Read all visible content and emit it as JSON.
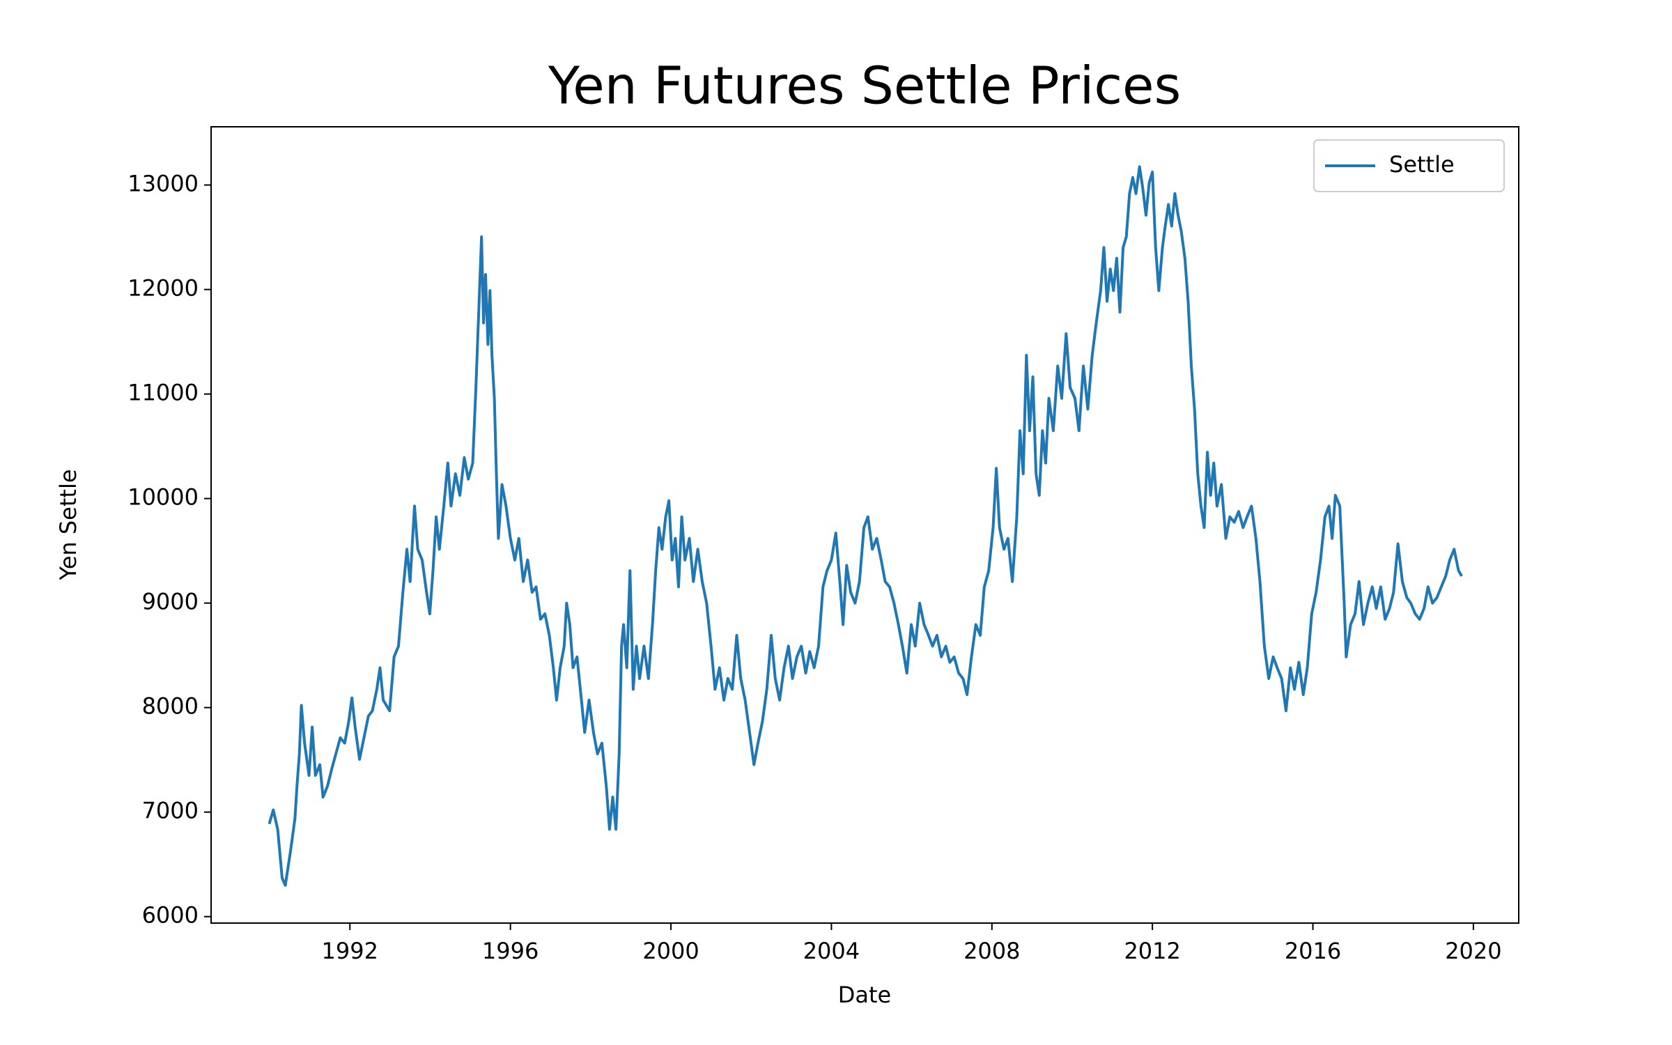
{
  "chart_data": {
    "type": "line",
    "title": "Yen Futures Settle Prices",
    "x_label": "Date",
    "y_label": "Yen Settle",
    "x": [
      1989.99,
      1990.09,
      1990.2,
      1990.31,
      1990.39,
      1990.52,
      1990.63,
      1990.68,
      1990.74,
      1990.79,
      1990.87,
      1990.98,
      1991.06,
      1991.14,
      1991.25,
      1991.33,
      1991.44,
      1991.54,
      1991.65,
      1991.76,
      1991.87,
      1991.97,
      1992.05,
      1992.13,
      1992.24,
      1992.35,
      1992.46,
      1992.56,
      1992.67,
      1992.75,
      1992.83,
      1992.99,
      1993.1,
      1993.21,
      1993.32,
      1993.42,
      1993.5,
      1993.61,
      1993.69,
      1993.8,
      1993.91,
      1993.99,
      1994.07,
      1994.15,
      1994.23,
      1994.34,
      1994.44,
      1994.52,
      1994.63,
      1994.74,
      1994.85,
      1994.95,
      1995.06,
      1995.14,
      1995.22,
      1995.28,
      1995.33,
      1995.38,
      1995.44,
      1995.49,
      1995.54,
      1995.6,
      1995.65,
      1995.7,
      1995.79,
      1995.89,
      1996.0,
      1996.11,
      1996.21,
      1996.32,
      1996.43,
      1996.54,
      1996.64,
      1996.75,
      1996.86,
      1996.97,
      1997.07,
      1997.15,
      1997.24,
      1997.34,
      1997.4,
      1997.48,
      1997.56,
      1997.66,
      1997.77,
      1997.85,
      1997.96,
      1998.07,
      1998.17,
      1998.28,
      1998.39,
      1998.47,
      1998.55,
      1998.63,
      1998.71,
      1998.77,
      1998.82,
      1998.9,
      1998.98,
      1999.06,
      1999.14,
      1999.22,
      1999.33,
      1999.44,
      1999.54,
      1999.62,
      1999.7,
      1999.78,
      1999.87,
      1999.95,
      2000.03,
      2000.11,
      2000.19,
      2000.27,
      2000.35,
      2000.46,
      2000.56,
      2000.67,
      2000.78,
      2000.89,
      2001.0,
      2001.1,
      2001.21,
      2001.32,
      2001.42,
      2001.53,
      2001.64,
      2001.74,
      2001.85,
      2001.96,
      2002.07,
      2002.17,
      2002.28,
      2002.39,
      2002.5,
      2002.6,
      2002.71,
      2002.82,
      2002.93,
      2003.03,
      2003.14,
      2003.25,
      2003.36,
      2003.46,
      2003.57,
      2003.68,
      2003.79,
      2003.89,
      2004.0,
      2004.11,
      2004.21,
      2004.29,
      2004.38,
      2004.48,
      2004.59,
      2004.7,
      2004.81,
      2004.91,
      2005.02,
      2005.13,
      2005.24,
      2005.34,
      2005.45,
      2005.56,
      2005.67,
      2005.77,
      2005.88,
      2005.99,
      2006.09,
      2006.2,
      2006.31,
      2006.42,
      2006.52,
      2006.63,
      2006.74,
      2006.85,
      2006.95,
      2007.06,
      2007.17,
      2007.28,
      2007.38,
      2007.49,
      2007.6,
      2007.71,
      2007.81,
      2007.92,
      2008.03,
      2008.11,
      2008.19,
      2008.3,
      2008.4,
      2008.51,
      2008.62,
      2008.7,
      2008.78,
      2008.86,
      2008.94,
      2009.02,
      2009.1,
      2009.18,
      2009.26,
      2009.34,
      2009.42,
      2009.53,
      2009.64,
      2009.74,
      2009.85,
      2009.95,
      2010.07,
      2010.17,
      2010.28,
      2010.39,
      2010.5,
      2010.6,
      2010.71,
      2010.79,
      2010.87,
      2010.95,
      2011.03,
      2011.11,
      2011.19,
      2011.27,
      2011.35,
      2011.43,
      2011.51,
      2011.59,
      2011.68,
      2011.76,
      2011.84,
      2011.92,
      2012.0,
      2012.08,
      2012.16,
      2012.25,
      2012.32,
      2012.4,
      2012.48,
      2012.56,
      2012.64,
      2012.72,
      2012.81,
      2012.89,
      2012.97,
      2013.05,
      2013.13,
      2013.21,
      2013.29,
      2013.37,
      2013.45,
      2013.53,
      2013.61,
      2013.72,
      2013.83,
      2013.93,
      2014.04,
      2014.15,
      2014.26,
      2014.36,
      2014.47,
      2014.58,
      2014.68,
      2014.79,
      2014.9,
      2015.01,
      2015.11,
      2015.22,
      2015.33,
      2015.44,
      2015.54,
      2015.65,
      2015.76,
      2015.86,
      2015.97,
      2016.08,
      2016.19,
      2016.3,
      2016.4,
      2016.48,
      2016.56,
      2016.67,
      2016.78,
      2016.83,
      2016.94,
      2017.05,
      2017.15,
      2017.26,
      2017.37,
      2017.48,
      2017.58,
      2017.69,
      2017.8,
      2017.91,
      2018.01,
      2018.12,
      2018.23,
      2018.34,
      2018.44,
      2018.55,
      2018.66,
      2018.77,
      2018.87,
      2018.98,
      2019.09,
      2019.2,
      2019.31,
      2019.41,
      2019.52,
      2019.63,
      2019.71
    ],
    "series": [
      {
        "name": "Settle",
        "color": "#1f77b4",
        "values": [
          6887,
          7021,
          6835,
          6371,
          6299,
          6629,
          6938,
          7247,
          7557,
          8021,
          7660,
          7351,
          7814,
          7351,
          7454,
          7144,
          7247,
          7402,
          7557,
          7711,
          7660,
          7866,
          8093,
          7814,
          7505,
          7711,
          7918,
          7969,
          8175,
          8381,
          8072,
          7969,
          8485,
          8588,
          9103,
          9515,
          9206,
          9928,
          9515,
          9412,
          9103,
          8897,
          9309,
          9825,
          9515,
          9928,
          10340,
          9928,
          10237,
          10031,
          10392,
          10186,
          10340,
          11062,
          11887,
          12505,
          11680,
          12144,
          11474,
          11990,
          11371,
          10959,
          10237,
          9619,
          10134,
          9928,
          9619,
          9412,
          9619,
          9206,
          9412,
          9103,
          9155,
          8845,
          8897,
          8691,
          8381,
          8072,
          8381,
          8588,
          8999,
          8794,
          8381,
          8485,
          8072,
          7763,
          8072,
          7763,
          7557,
          7660,
          7247,
          6835,
          7144,
          6835,
          7557,
          8588,
          8794,
          8381,
          9309,
          8175,
          8588,
          8278,
          8588,
          8278,
          8794,
          9309,
          9722,
          9515,
          9825,
          9979,
          9412,
          9619,
          9155,
          9825,
          9412,
          9619,
          9206,
          9515,
          9206,
          8999,
          8588,
          8175,
          8381,
          8072,
          8278,
          8175,
          8691,
          8278,
          8072,
          7763,
          7454,
          7660,
          7866,
          8175,
          8691,
          8278,
          8072,
          8381,
          8588,
          8278,
          8485,
          8588,
          8330,
          8536,
          8381,
          8588,
          9155,
          9309,
          9412,
          9670,
          9206,
          8794,
          9361,
          9103,
          8999,
          9206,
          9722,
          9825,
          9515,
          9619,
          9412,
          9206,
          9155,
          8999,
          8794,
          8588,
          8330,
          8794,
          8588,
          8999,
          8794,
          8691,
          8588,
          8691,
          8485,
          8588,
          8433,
          8485,
          8330,
          8278,
          8124,
          8485,
          8794,
          8691,
          9155,
          9309,
          9722,
          10289,
          9722,
          9515,
          9619,
          9206,
          9825,
          10649,
          10237,
          11371,
          10649,
          11165,
          10237,
          10031,
          10649,
          10340,
          10959,
          10649,
          11268,
          10959,
          11577,
          11062,
          10959,
          10649,
          11268,
          10856,
          11371,
          11680,
          11990,
          12402,
          11887,
          12196,
          11990,
          12299,
          11784,
          12402,
          12505,
          12918,
          13072,
          12918,
          13175,
          12969,
          12711,
          13021,
          13124,
          12402,
          11990,
          12402,
          12608,
          12814,
          12608,
          12918,
          12711,
          12557,
          12299,
          11887,
          11268,
          10856,
          10237,
          9928,
          9722,
          10443,
          10031,
          10340,
          9928,
          10134,
          9619,
          9825,
          9773,
          9876,
          9722,
          9825,
          9928,
          9619,
          9206,
          8588,
          8278,
          8485,
          8381,
          8278,
          7969,
          8381,
          8175,
          8433,
          8124,
          8381,
          8897,
          9103,
          9412,
          9825,
          9928,
          9619,
          10031,
          9928,
          8999,
          8485,
          8794,
          8897,
          9206,
          8794,
          8999,
          9155,
          8949,
          9155,
          8845,
          8949,
          9103,
          9567,
          9206,
          9052,
          8999,
          8897,
          8845,
          8949,
          9155,
          8999,
          9052,
          9155,
          9258,
          9412,
          9515,
          9309,
          9258
        ]
      }
    ],
    "xlim": [
      1988.54,
      2021.13
    ],
    "ylim": [
      5938,
      13557
    ],
    "xticks": [
      1992,
      1996,
      2000,
      2004,
      2008,
      2012,
      2016,
      2020
    ],
    "yticks": [
      6000,
      7000,
      8000,
      9000,
      10000,
      11000,
      12000,
      13000
    ],
    "legend": "upper right"
  }
}
